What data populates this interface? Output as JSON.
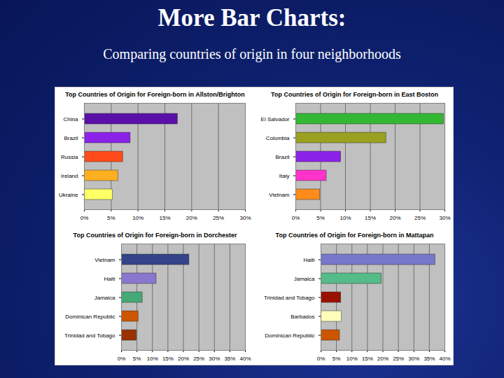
{
  "title": "More Bar Charts:",
  "subtitle": "Comparing countries of origin in four neighborhoods",
  "chart_data": [
    {
      "type": "bar",
      "orientation": "horizontal",
      "title": "Top Countries of Origin for Foreign-born in Allston/Brighton",
      "categories": [
        "China",
        "Brazil",
        "Russia",
        "Ireland",
        "Ukraine"
      ],
      "values": [
        17.4,
        8.6,
        7.2,
        6.3,
        5.3
      ],
      "colors": [
        "#5a0fa8",
        "#8b22e8",
        "#ff4a1a",
        "#ffb020",
        "#ffff66"
      ],
      "xlim": [
        0,
        30
      ],
      "xticks": [
        {
          "value": 0,
          "label": "0%"
        },
        {
          "value": 5,
          "label": "5%"
        },
        {
          "value": 10,
          "label": "10%"
        },
        {
          "value": 15,
          "label": "15%"
        },
        {
          "value": 20,
          "label": "20%"
        },
        {
          "value": 25,
          "label": "25%"
        },
        {
          "value": 30,
          "label": "30%"
        }
      ],
      "grid": true
    },
    {
      "type": "bar",
      "orientation": "horizontal",
      "title": "Top Countries of Origin for Foreign-born in East Boston",
      "categories": [
        "El Salvador",
        "Colombia",
        "Brazil",
        "Italy",
        "Vietnam"
      ],
      "values": [
        29.8,
        18.2,
        9.1,
        6.2,
        4.9
      ],
      "colors": [
        "#33b833",
        "#9aa020",
        "#8b22e8",
        "#ff33cc",
        "#ff8c1a"
      ],
      "xlim": [
        0,
        30
      ],
      "xticks": [
        {
          "value": 0,
          "label": "0%"
        },
        {
          "value": 5,
          "label": "5%"
        },
        {
          "value": 10,
          "label": "10%"
        },
        {
          "value": 15,
          "label": "15%"
        },
        {
          "value": 20,
          "label": "20%"
        },
        {
          "value": 25,
          "label": "25%"
        },
        {
          "value": 30,
          "label": "30%"
        }
      ],
      "grid": true
    },
    {
      "type": "bar",
      "orientation": "horizontal",
      "title": "Top Countries of Origin for Foreign-born in Dorchester",
      "categories": [
        "Vietnam",
        "Haiti",
        "Jamaica",
        "Dominican Republic",
        "Trinidad and Tobago"
      ],
      "values": [
        21.9,
        11.3,
        6.8,
        5.5,
        4.9
      ],
      "colors": [
        "#334488",
        "#8877cc",
        "#44aa77",
        "#cc5500",
        "#993300"
      ],
      "xlim": [
        0,
        40
      ],
      "xticks": [
        {
          "value": 0,
          "label": "0%"
        },
        {
          "value": 5,
          "label": "5%"
        },
        {
          "value": 10,
          "label": "10%"
        },
        {
          "value": 15,
          "label": "15%"
        },
        {
          "value": 20,
          "label": "20%"
        },
        {
          "value": 25,
          "label": "25%"
        },
        {
          "value": 30,
          "label": "30%"
        },
        {
          "value": 35,
          "label": "35%"
        },
        {
          "value": 40,
          "label": "40%"
        }
      ],
      "grid": true
    },
    {
      "type": "bar",
      "orientation": "horizontal",
      "title": "Top Countries of Origin for Foreign-born in Mattapan",
      "categories": [
        "Haiti",
        "Jamaica",
        "Trinidad and Tobago",
        "Barbados",
        "Dominican Republic"
      ],
      "values": [
        36.9,
        19.6,
        6.5,
        6.7,
        6.1
      ],
      "colors": [
        "#7777cc",
        "#55bb88",
        "#991100",
        "#ffffbb",
        "#cc5500"
      ],
      "xlim": [
        0,
        40
      ],
      "xticks": [
        {
          "value": 0,
          "label": "0%"
        },
        {
          "value": 5,
          "label": "5%"
        },
        {
          "value": 10,
          "label": "10%"
        },
        {
          "value": 15,
          "label": "15%"
        },
        {
          "value": 20,
          "label": "20%"
        },
        {
          "value": 25,
          "label": "25%"
        },
        {
          "value": 30,
          "label": "30%"
        },
        {
          "value": 35,
          "label": "35%"
        },
        {
          "value": 40,
          "label": "40%"
        }
      ],
      "grid": true
    }
  ]
}
